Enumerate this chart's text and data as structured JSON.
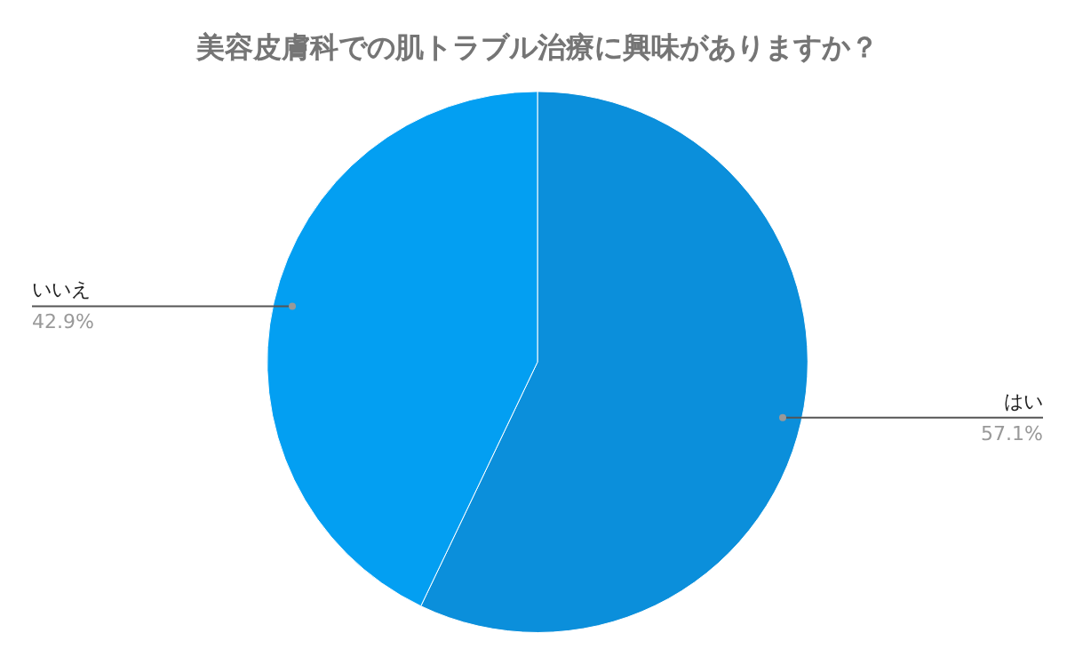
{
  "chart_data": {
    "type": "pie",
    "title": "美容皮膚科での肌トラブル治療に興味がありますか？",
    "categories": [
      "はい",
      "いいえ"
    ],
    "values": [
      57.1,
      42.9
    ],
    "colors": [
      "#0b8fdb",
      "#039ff2"
    ],
    "value_labels": [
      "57.1%",
      "42.9%"
    ],
    "legend": false
  }
}
